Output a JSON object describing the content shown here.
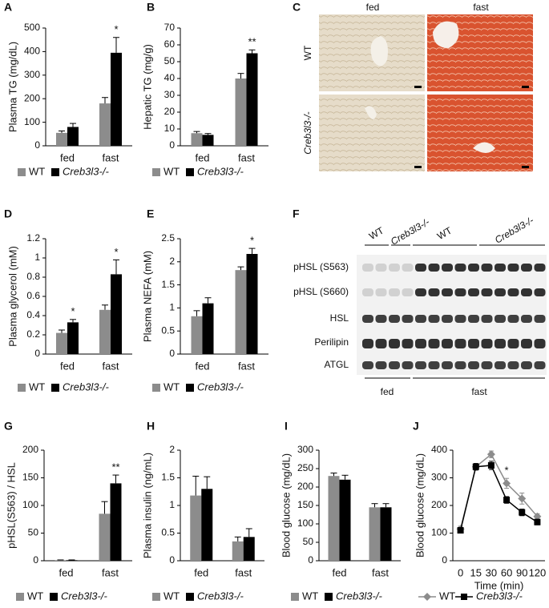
{
  "chart_data": [
    {
      "type": "bar",
      "panel": "A",
      "ylabel": "Plasma TG (mg/dL)",
      "categories": [
        "fed",
        "fast"
      ],
      "series": [
        {
          "name": "WT",
          "color": "#8c8c8c",
          "values": [
            55,
            180
          ],
          "errors": [
            8,
            25
          ]
        },
        {
          "name": "Creb3l3-/-",
          "color": "#000000",
          "values": [
            80,
            395
          ],
          "errors": [
            15,
            65
          ]
        }
      ],
      "significance": [
        null,
        "*"
      ],
      "ylim": [
        0,
        500
      ],
      "yticks": [
        0,
        100,
        200,
        300,
        400,
        500
      ]
    },
    {
      "type": "bar",
      "panel": "B",
      "ylabel": "Hepatic TG (mg/g)",
      "categories": [
        "fed",
        "fast"
      ],
      "series": [
        {
          "name": "WT",
          "color": "#8c8c8c",
          "values": [
            7.5,
            40
          ],
          "errors": [
            1,
            3
          ]
        },
        {
          "name": "Creb3l3-/-",
          "color": "#000000",
          "values": [
            6.5,
            55
          ],
          "errors": [
            0.8,
            2
          ]
        }
      ],
      "significance": [
        null,
        "**"
      ],
      "ylim": [
        0,
        70
      ],
      "yticks": [
        0,
        10,
        20,
        30,
        40,
        50,
        60,
        70
      ]
    },
    {
      "type": "bar",
      "panel": "D",
      "ylabel": "Plasma glycerol (mM)",
      "categories": [
        "fed",
        "fast"
      ],
      "series": [
        {
          "name": "WT",
          "color": "#8c8c8c",
          "values": [
            0.22,
            0.46
          ],
          "errors": [
            0.03,
            0.05
          ]
        },
        {
          "name": "Creb3l3-/-",
          "color": "#000000",
          "values": [
            0.33,
            0.83
          ],
          "errors": [
            0.03,
            0.15
          ]
        }
      ],
      "significance": [
        "*",
        "*"
      ],
      "ylim": [
        0,
        1.2
      ],
      "yticks": [
        0,
        0.2,
        0.4,
        0.6,
        0.8,
        1,
        1.2
      ]
    },
    {
      "type": "bar",
      "panel": "E",
      "ylabel": "Plasma NEFA (mM)",
      "categories": [
        "fed",
        "fast"
      ],
      "series": [
        {
          "name": "WT",
          "color": "#8c8c8c",
          "values": [
            0.82,
            1.82
          ],
          "errors": [
            0.12,
            0.07
          ]
        },
        {
          "name": "Creb3l3-/-",
          "color": "#000000",
          "values": [
            1.1,
            2.17
          ],
          "errors": [
            0.12,
            0.12
          ]
        }
      ],
      "significance": [
        null,
        "*"
      ],
      "ylim": [
        0,
        2.5
      ],
      "yticks": [
        0,
        0.5,
        1,
        1.5,
        2,
        2.5
      ]
    },
    {
      "type": "bar",
      "panel": "G",
      "ylabel": "pHSL(S563) / HSL",
      "categories": [
        "fed",
        "fast"
      ],
      "series": [
        {
          "name": "WT",
          "color": "#8c8c8c",
          "values": [
            1,
            85
          ],
          "errors": [
            0.5,
            22
          ]
        },
        {
          "name": "Creb3l3-/-",
          "color": "#000000",
          "values": [
            1,
            140
          ],
          "errors": [
            0.5,
            15
          ]
        }
      ],
      "significance": [
        null,
        "**"
      ],
      "ylim": [
        0,
        200
      ],
      "yticks": [
        0,
        50,
        100,
        150,
        200
      ]
    },
    {
      "type": "bar",
      "panel": "H",
      "ylabel": "Plasma insulin (ng/mL)",
      "categories": [
        "fed",
        "fast"
      ],
      "series": [
        {
          "name": "WT",
          "color": "#8c8c8c",
          "values": [
            1.18,
            0.35
          ],
          "errors": [
            0.35,
            0.08
          ]
        },
        {
          "name": "Creb3l3-/-",
          "color": "#000000",
          "values": [
            1.3,
            0.43
          ],
          "errors": [
            0.22,
            0.15
          ]
        }
      ],
      "ylim": [
        0,
        2
      ],
      "yticks": [
        0,
        0.5,
        1,
        1.5,
        2
      ]
    },
    {
      "type": "bar",
      "panel": "I",
      "ylabel": "Blood glucose (mg/dL)",
      "categories": [
        "fed",
        "fast"
      ],
      "series": [
        {
          "name": "WT",
          "color": "#8c8c8c",
          "values": [
            230,
            145
          ],
          "errors": [
            8,
            10
          ]
        },
        {
          "name": "Creb3l3-/-",
          "color": "#000000",
          "values": [
            220,
            145
          ],
          "errors": [
            12,
            10
          ]
        }
      ],
      "ylim": [
        0,
        300
      ],
      "yticks": [
        0,
        50,
        100,
        150,
        200,
        250,
        300
      ]
    },
    {
      "type": "line",
      "panel": "J",
      "ylabel": "Blood glucose (mg/dL)",
      "xlabel": "Time (min)",
      "categories": [
        "0",
        "15",
        "30",
        "60",
        "90",
        "120"
      ],
      "series": [
        {
          "name": "WT",
          "color": "#8c8c8c",
          "marker": "diamond",
          "values": [
            115,
            340,
            385,
            280,
            225,
            160
          ],
          "errors": [
            10,
            10,
            12,
            18,
            20,
            10
          ]
        },
        {
          "name": "Creb3l3-/-",
          "color": "#000000",
          "marker": "square",
          "values": [
            110,
            340,
            345,
            220,
            175,
            140
          ],
          "errors": [
            10,
            12,
            15,
            12,
            12,
            10
          ]
        }
      ],
      "significance": [
        null,
        null,
        null,
        "*",
        null,
        null
      ],
      "ylim": [
        0,
        400
      ],
      "yticks": [
        0,
        100,
        200,
        300,
        400
      ]
    }
  ],
  "micrograph": {
    "panel": "C",
    "columns": [
      "fed",
      "fast"
    ],
    "rows": [
      "WT",
      "Creb3l3-/-"
    ]
  },
  "blot": {
    "panel": "F",
    "lane_groups": [
      "WT",
      "Creb3l3-/-",
      "WT",
      "Creb3l3-/-"
    ],
    "rows": [
      "pHSL (S563)",
      "pHSL (S660)",
      "HSL",
      "Perilipin",
      "ATGL"
    ],
    "conditions": [
      "fed",
      "fast"
    ]
  }
}
